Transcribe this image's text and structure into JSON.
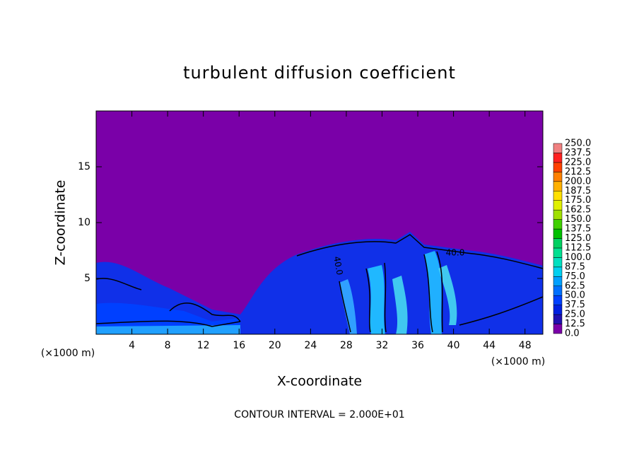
{
  "chart_data": {
    "type": "contour",
    "title": "turbulent diffusion coefficient",
    "x_label": "X-coordinate",
    "y_label": "Z-coordinate",
    "x_unit": "(×1000 m)",
    "x_unit_right": "(×1000 m)",
    "footnote": "CONTOUR INTERVAL = 2.000E+01",
    "contour_labels": [
      "40.0",
      "40.0"
    ],
    "xlim": [
      0,
      50
    ],
    "ylim": [
      0,
      20
    ],
    "xticks": [
      4,
      8,
      12,
      16,
      20,
      24,
      28,
      32,
      36,
      40,
      44,
      48
    ],
    "yticks": [
      5,
      10,
      15
    ],
    "colorbar": {
      "ticks": [
        {
          "value": 0,
          "label": "0.0"
        },
        {
          "value": 12.5,
          "label": "12.5"
        },
        {
          "value": 25,
          "label": "25.0"
        },
        {
          "value": 37.5,
          "label": "37.5"
        },
        {
          "value": 50,
          "label": "50.0"
        },
        {
          "value": 62.5,
          "label": "62.5"
        },
        {
          "value": 75,
          "label": "75.0"
        },
        {
          "value": 87.5,
          "label": "87.5"
        },
        {
          "value": 100,
          "label": "100.0"
        },
        {
          "value": 112.5,
          "label": "112.5"
        },
        {
          "value": 125,
          "label": "125.0"
        },
        {
          "value": 137.5,
          "label": "137.5"
        },
        {
          "value": 150,
          "label": "150.0"
        },
        {
          "value": 162.5,
          "label": "162.5"
        },
        {
          "value": 175,
          "label": "175.0"
        },
        {
          "value": 187.5,
          "label": "187.5"
        },
        {
          "value": 200,
          "label": "200.0"
        },
        {
          "value": 212.5,
          "label": "212.5"
        },
        {
          "value": 225,
          "label": "225.0"
        },
        {
          "value": 237.5,
          "label": "237.5"
        },
        {
          "value": 250,
          "label": "250.0"
        }
      ],
      "colors": [
        "#7a00a8",
        "#2010b0",
        "#0020e0",
        "#0040ff",
        "#0070ff",
        "#00a0ff",
        "#00d0f0",
        "#00e0c0",
        "#00e090",
        "#00d060",
        "#00c000",
        "#40d000",
        "#a0e000",
        "#e0f000",
        "#ffe000",
        "#ffb000",
        "#ff8000",
        "#ff4000",
        "#ff2020",
        "#f08080"
      ]
    }
  }
}
